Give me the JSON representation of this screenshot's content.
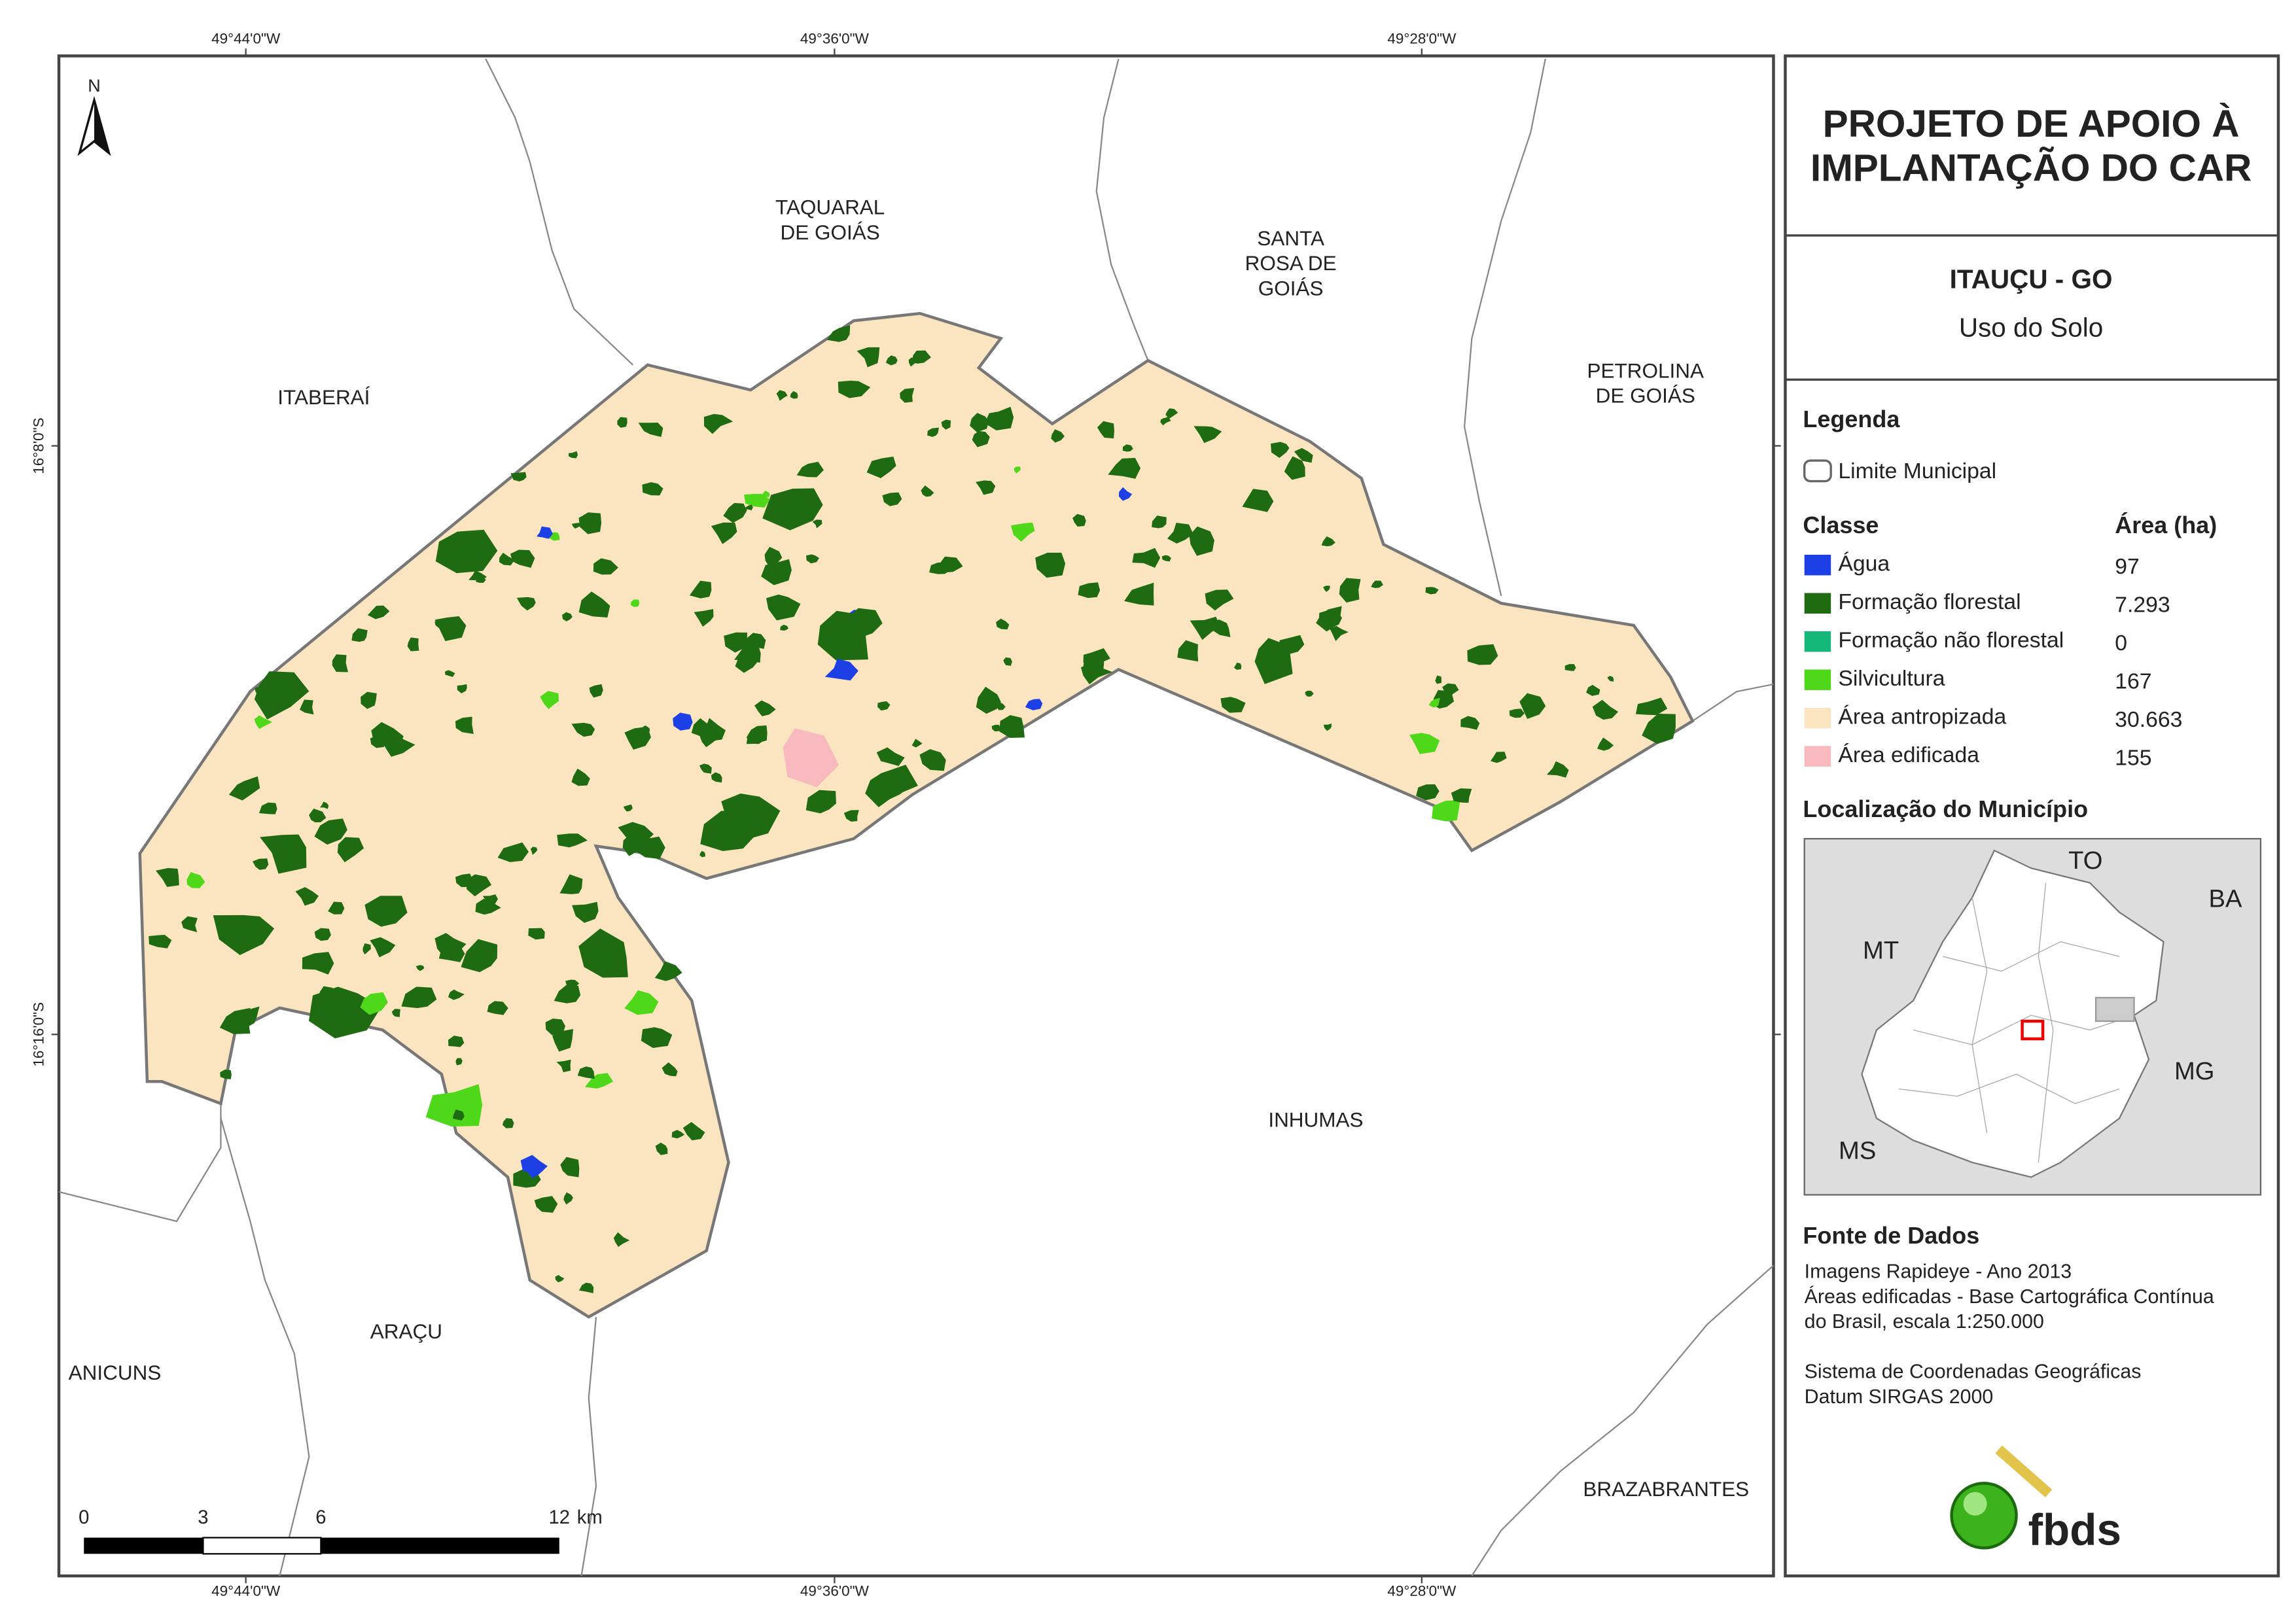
{
  "coords": {
    "top": [
      "49°44'0\"W",
      "49°36'0\"W",
      "49°28'0\"W"
    ],
    "bottom": [
      "49°44'0\"W",
      "49°36'0\"W",
      "49°28'0\"W"
    ],
    "left": [
      "16°8'0\"S",
      "16°16'0\"S"
    ]
  },
  "map": {
    "north": "N",
    "places": [
      {
        "lines": [
          "TAQUARAL",
          "DE GOIÁS"
        ]
      },
      {
        "lines": [
          "SANTA",
          "ROSA DE",
          "GOIÁS"
        ]
      },
      {
        "lines": [
          "PETROLINA",
          "DE GOIÁS"
        ]
      },
      {
        "lines": [
          "ITABERAÍ"
        ]
      },
      {
        "lines": [
          "INHUMAS"
        ]
      },
      {
        "lines": [
          "ARAÇU"
        ]
      },
      {
        "lines": [
          "ANICUNS"
        ]
      },
      {
        "lines": [
          "BRAZABRANTES"
        ]
      }
    ],
    "scale_bar": {
      "labels": [
        "0",
        "3",
        "6",
        "12"
      ],
      "unit": "km"
    }
  },
  "header": {
    "title": [
      "PROJETO DE APOIO À",
      "IMPLANTAÇÃO DO CAR"
    ],
    "municipality": "ITAUÇU - GO",
    "subtitle": "Uso do Solo"
  },
  "legend": {
    "title": "Legenda",
    "boundary": "Limite Municipal",
    "class_header": "Classe",
    "area_header": "Área (ha)",
    "rows": [
      {
        "label": "Água",
        "area": "97",
        "color": "#1d3fe6"
      },
      {
        "label": "Formação florestal",
        "area": "7.293",
        "color": "#1f6b12"
      },
      {
        "label": "Formação não florestal",
        "area": "0",
        "color": "#16b87a"
      },
      {
        "label": "Silvicultura",
        "area": "167",
        "color": "#4fd81a"
      },
      {
        "label": "Área antropizada",
        "area": "30.663",
        "color": "#fbe5c0"
      },
      {
        "label": "Área edificada",
        "area": "155",
        "color": "#f7b9bd"
      }
    ]
  },
  "location": {
    "title": "Localização do Município",
    "labels": [
      "TO",
      "BA",
      "MT",
      "MG",
      "MS"
    ]
  },
  "sources": {
    "title": "Fonte de Dados",
    "lines": [
      "Imagens Rapideye - Ano 2013",
      "Áreas edificadas - Base Cartográfica Contínua",
      "do Brasil, escala 1:250.000",
      "",
      "Sistema de Coordenadas Geográficas",
      "Datum SIRGAS 2000"
    ]
  },
  "logo": "fbds"
}
